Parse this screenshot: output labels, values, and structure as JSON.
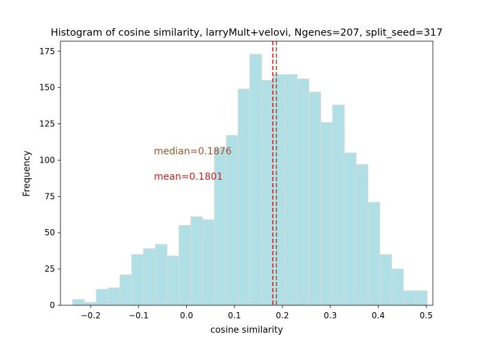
{
  "chart_data": {
    "type": "bar",
    "title": "Histogram of cosine similarity, larryMult+velovi, Ngenes=207, split_seed=317",
    "xlabel": "cosine similarity",
    "ylabel": "Frequency",
    "xlim": [
      -0.263,
      0.514
    ],
    "ylim": [
      0,
      182
    ],
    "xticks": [
      -0.2,
      -0.1,
      0.0,
      0.1,
      0.2,
      0.3,
      0.4,
      0.5
    ],
    "xtick_labels": [
      "−0.2",
      "−0.1",
      "0.0",
      "0.1",
      "0.2",
      "0.3",
      "0.4",
      "0.5"
    ],
    "yticks": [
      0,
      25,
      50,
      75,
      100,
      125,
      150,
      175
    ],
    "bin_edges": [
      -0.2377,
      -0.213,
      -0.1884,
      -0.1637,
      -0.1391,
      -0.1144,
      -0.0898,
      -0.0651,
      -0.0405,
      -0.0158,
      0.0089,
      0.0335,
      0.0582,
      0.0828,
      0.1075,
      0.1321,
      0.1568,
      0.1814,
      0.2061,
      0.2307,
      0.2554,
      0.28,
      0.3047,
      0.3293,
      0.354,
      0.3786,
      0.4033,
      0.428,
      0.4526,
      0.4773,
      0.5019
    ],
    "counts": [
      4,
      2,
      11,
      12,
      21,
      35,
      39,
      42,
      34,
      55,
      61,
      59,
      108,
      117,
      149,
      173,
      155,
      159,
      159,
      156,
      147,
      126,
      138,
      105,
      97,
      71,
      35,
      25,
      10,
      10
    ],
    "bar_color": "#b0e0e6",
    "bar_edge_color": "#d9d9d9",
    "vlines": [
      {
        "label": "median=0.1876",
        "value": 0.1876,
        "color": "#a0522d"
      },
      {
        "label": "mean=0.1801",
        "value": 0.1801,
        "color": "#cc1f1f"
      }
    ],
    "grid": false,
    "legend": "none"
  }
}
